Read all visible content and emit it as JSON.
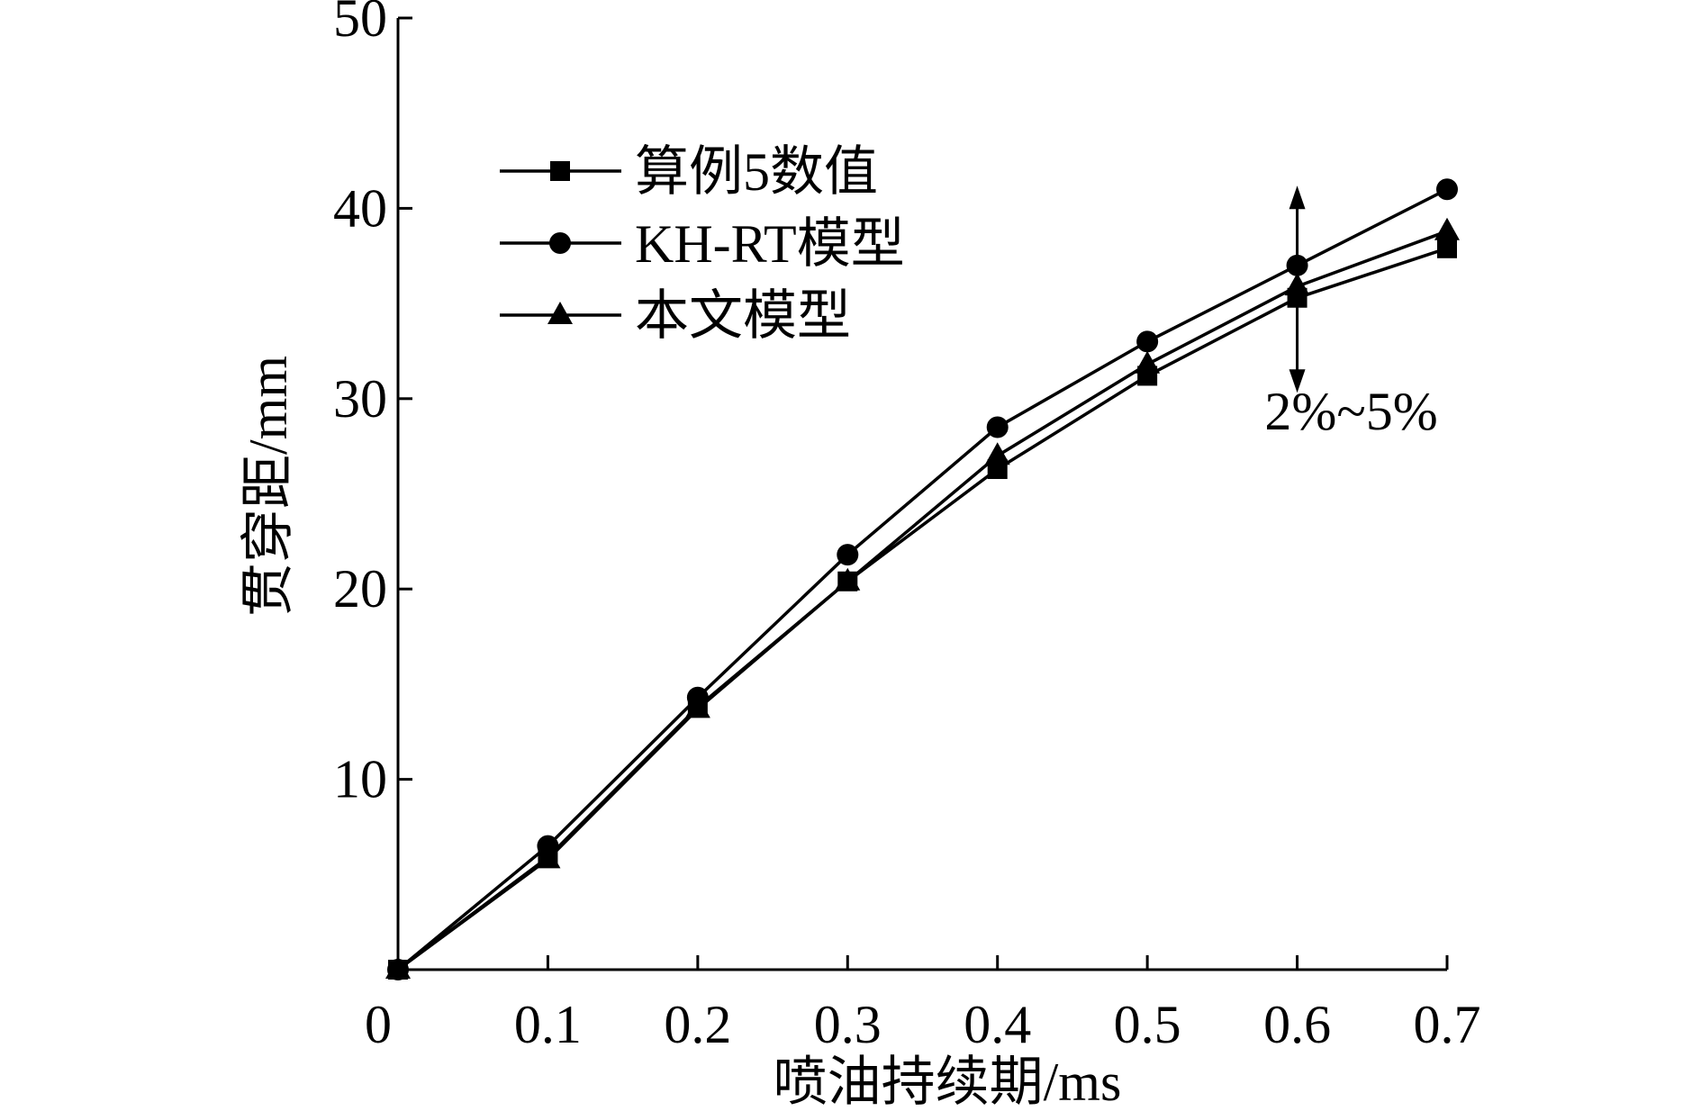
{
  "chart_data": {
    "type": "line",
    "xlabel": "喷油持续期/ms",
    "ylabel": "贯穿距/mm",
    "xlim": [
      0,
      0.7
    ],
    "ylim": [
      0,
      50
    ],
    "x_ticks": [
      0,
      0.1,
      0.2,
      0.3,
      0.4,
      0.5,
      0.6,
      0.7
    ],
    "x_tick_labels": [
      "0",
      "0.1",
      "0.2",
      "0.3",
      "0.4",
      "0.5",
      "0.6",
      "0.7"
    ],
    "y_ticks": [
      10,
      20,
      30,
      40,
      50
    ],
    "y_tick_labels": [
      "10",
      "20",
      "30",
      "40",
      "50"
    ],
    "grid": false,
    "legend_position": "upper-left",
    "x": [
      0,
      0.1,
      0.2,
      0.3,
      0.4,
      0.5,
      0.6,
      0.7
    ],
    "series": [
      {
        "name": "算例5数值",
        "marker": "square",
        "color": "#000000",
        "values": [
          0,
          5.9,
          13.8,
          20.4,
          26.3,
          31.2,
          35.3,
          37.9
        ]
      },
      {
        "name": "KH-RT模型",
        "marker": "circle",
        "color": "#000000",
        "values": [
          0,
          6.5,
          14.3,
          21.8,
          28.5,
          33.0,
          37.0,
          41.0
        ]
      },
      {
        "name": "本文模型",
        "marker": "triangle",
        "color": "#000000",
        "values": [
          0,
          5.8,
          13.7,
          20.4,
          27.0,
          31.8,
          35.9,
          38.8
        ]
      }
    ],
    "annotations": [
      {
        "text": "2%~5%",
        "x": 0.6,
        "arrow_from": 30.5,
        "arrow_to": 41.0
      }
    ]
  }
}
